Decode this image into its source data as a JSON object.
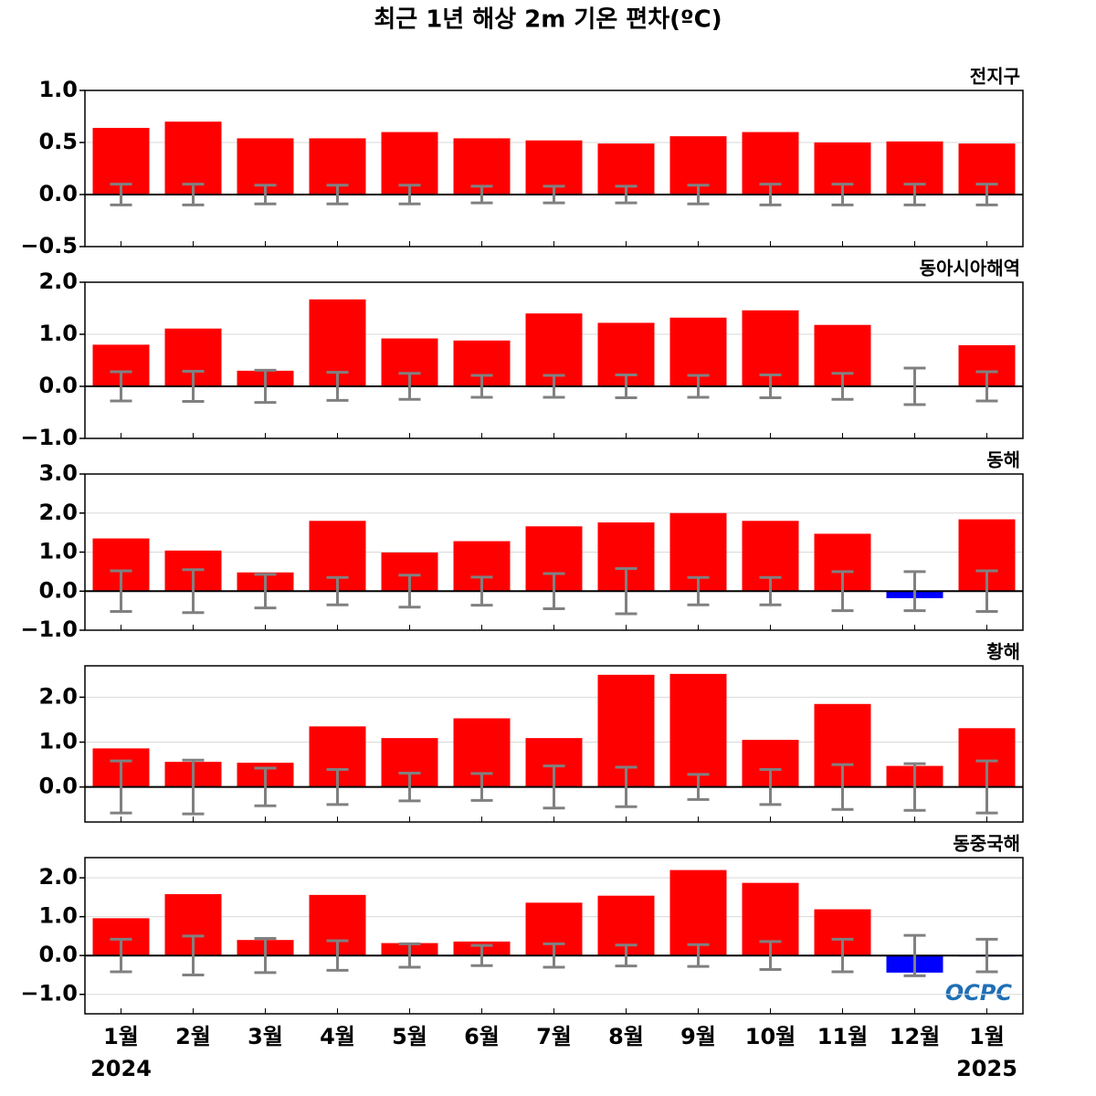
{
  "title": "최근 1년 해상 2m 기온 편차(ºC)",
  "logo": "OCPC",
  "chart_data": [
    {
      "type": "bar",
      "subtitle": "전지구",
      "values": [
        0.64,
        0.7,
        0.54,
        0.54,
        0.6,
        0.54,
        0.52,
        0.49,
        0.56,
        0.6,
        0.5,
        0.51,
        0.49
      ],
      "errors": [
        0.1,
        0.1,
        0.09,
        0.09,
        0.09,
        0.08,
        0.08,
        0.08,
        0.09,
        0.1,
        0.1,
        0.1,
        0.1
      ],
      "ylim": [
        -0.5,
        1.0
      ],
      "yticks": [
        {
          "value": -0.5,
          "label": "−0.5"
        },
        {
          "value": 0,
          "label": "0.0"
        },
        {
          "value": 0.5,
          "label": "0.5"
        },
        {
          "value": 1.0,
          "label": "1.0"
        }
      ],
      "grid": true,
      "pos_color": "#ff0000",
      "neg_color": "#0000ff",
      "error_color": "#808080"
    },
    {
      "type": "bar",
      "subtitle": "동아시아해역",
      "values": [
        0.8,
        1.11,
        0.3,
        1.67,
        0.92,
        0.88,
        1.4,
        1.22,
        1.32,
        1.46,
        1.18,
        0.01,
        0.79
      ],
      "errors": [
        0.28,
        0.29,
        0.31,
        0.27,
        0.25,
        0.21,
        0.21,
        0.22,
        0.21,
        0.22,
        0.25,
        0.35,
        0.28
      ],
      "ylim": [
        -1.0,
        2.0
      ],
      "yticks": [
        {
          "value": -1,
          "label": "−1.0"
        },
        {
          "value": 0,
          "label": "0.0"
        },
        {
          "value": 1,
          "label": "1.0"
        },
        {
          "value": 2,
          "label": "2.0"
        }
      ],
      "grid": true,
      "pos_color": "#ff0000",
      "neg_color": "#0000ff",
      "error_color": "#808080"
    },
    {
      "type": "bar",
      "subtitle": "동해",
      "values": [
        1.35,
        1.04,
        0.48,
        1.8,
        0.99,
        1.28,
        1.66,
        1.76,
        2.0,
        1.8,
        1.47,
        -0.18,
        1.84
      ],
      "errors": [
        0.52,
        0.55,
        0.43,
        0.35,
        0.41,
        0.36,
        0.45,
        0.58,
        0.35,
        0.35,
        0.5,
        0.5,
        0.52
      ],
      "ylim": [
        -1.0,
        3.0
      ],
      "yticks": [
        {
          "value": -1,
          "label": "−1.0"
        },
        {
          "value": 0,
          "label": "0.0"
        },
        {
          "value": 1,
          "label": "1.0"
        },
        {
          "value": 2,
          "label": "2.0"
        },
        {
          "value": 3,
          "label": "3.0"
        }
      ],
      "grid": true,
      "pos_color": "#ff0000",
      "neg_color": "#0000ff",
      "error_color": "#808080"
    },
    {
      "type": "bar",
      "subtitle": "황해",
      "values": [
        0.86,
        0.56,
        0.54,
        1.35,
        1.09,
        1.53,
        1.09,
        2.5,
        2.52,
        1.05,
        1.85,
        0.47,
        1.31
      ],
      "errors": [
        0.58,
        0.6,
        0.42,
        0.39,
        0.31,
        0.3,
        0.47,
        0.44,
        0.28,
        0.39,
        0.5,
        0.52,
        0.58
      ],
      "ylim": [
        -0.78,
        2.7
      ],
      "yticks": [
        {
          "value": 0,
          "label": "0.0"
        },
        {
          "value": 1,
          "label": "1.0"
        },
        {
          "value": 2,
          "label": "2.0"
        }
      ],
      "grid": true,
      "pos_color": "#ff0000",
      "neg_color": "#0000ff",
      "error_color": "#808080"
    },
    {
      "type": "bar",
      "subtitle": "동중국해",
      "categories": [
        "1월",
        "2월",
        "3월",
        "4월",
        "5월",
        "6월",
        "7월",
        "8월",
        "9월",
        "10월",
        "11월",
        "12월",
        "1월"
      ],
      "year_labels": [
        "2024",
        null,
        null,
        null,
        null,
        null,
        null,
        null,
        null,
        null,
        null,
        null,
        "2025"
      ],
      "values": [
        0.96,
        1.58,
        0.4,
        1.56,
        0.32,
        0.36,
        1.36,
        1.54,
        2.2,
        1.87,
        1.19,
        -0.44,
        -0.02
      ],
      "errors": [
        0.42,
        0.5,
        0.44,
        0.38,
        0.3,
        0.26,
        0.3,
        0.27,
        0.28,
        0.36,
        0.42,
        0.52,
        0.42
      ],
      "ylim": [
        -1.5,
        2.52
      ],
      "yticks": [
        {
          "value": -1,
          "label": "−1.0"
        },
        {
          "value": 0,
          "label": "0.0"
        },
        {
          "value": 1,
          "label": "1.0"
        },
        {
          "value": 2,
          "label": "2.0"
        }
      ],
      "grid": true,
      "pos_color": "#ff0000",
      "neg_color": "#0000ff",
      "error_color": "#808080"
    }
  ]
}
